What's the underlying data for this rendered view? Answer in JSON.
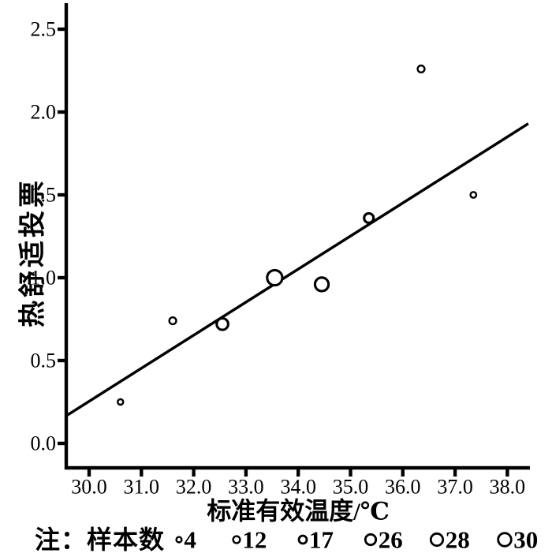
{
  "figure": {
    "background": "#ffffff",
    "ink": "#000000"
  },
  "chart_data": {
    "type": "scatter",
    "title": "",
    "xlabel": "标准有效温度/℃",
    "ylabel": "热舒适投票",
    "xlim": [
      29.56,
      38.43
    ],
    "ylim": [
      -0.15,
      2.66
    ],
    "grid": false,
    "legend_position": "bottom",
    "xticks": [
      "30.0",
      "31.0",
      "32.0",
      "33.0",
      "34.0",
      "35.0",
      "36.0",
      "37.0",
      "38.0"
    ],
    "xtick_values": [
      30,
      31,
      32,
      33,
      34,
      35,
      36,
      37,
      38
    ],
    "yticks": [
      "0.0",
      "0.5",
      "1.0",
      "1.5",
      "2.0",
      "2.5"
    ],
    "ytick_values": [
      0,
      0.5,
      1,
      1.5,
      2,
      2.5
    ],
    "points": [
      {
        "x": 30.6,
        "y": 0.25,
        "n": 4,
        "r": 3.5
      },
      {
        "x": 31.6,
        "y": 0.74,
        "n": 12,
        "r": 4.4
      },
      {
        "x": 32.55,
        "y": 0.72,
        "n": 26,
        "r": 7.3
      },
      {
        "x": 33.55,
        "y": 1.0,
        "n": 30,
        "r": 9.6
      },
      {
        "x": 34.45,
        "y": 0.96,
        "n": 28,
        "r": 8.6
      },
      {
        "x": 35.35,
        "y": 1.36,
        "n": 17,
        "r": 6.0
      },
      {
        "x": 36.35,
        "y": 2.26,
        "n": 12,
        "r": 4.4
      },
      {
        "x": 37.35,
        "y": 1.5,
        "n": 4,
        "r": 3.7
      }
    ],
    "trend_line": {
      "x1": 29.58,
      "y1": 0.17,
      "x2": 38.4,
      "y2": 1.93
    },
    "legend": {
      "note_label": "注：样本数",
      "items": [
        {
          "n": "4",
          "r": 3.4
        },
        {
          "n": "12",
          "r": 4.4
        },
        {
          "n": "17",
          "r": 5.0
        },
        {
          "n": "26",
          "r": 6.7
        },
        {
          "n": "28",
          "r": 7.7
        },
        {
          "n": "30",
          "r": 8.3
        }
      ]
    }
  }
}
